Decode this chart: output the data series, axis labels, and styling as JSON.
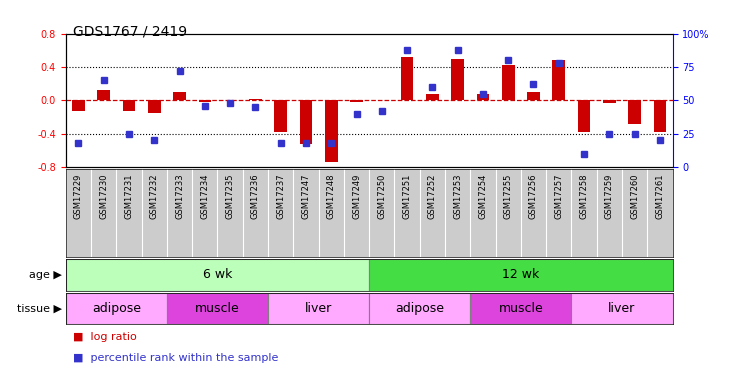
{
  "title": "GDS1767 / 2419",
  "samples": [
    "GSM17229",
    "GSM17230",
    "GSM17231",
    "GSM17232",
    "GSM17233",
    "GSM17234",
    "GSM17235",
    "GSM17236",
    "GSM17237",
    "GSM17247",
    "GSM17248",
    "GSM17249",
    "GSM17250",
    "GSM17251",
    "GSM17252",
    "GSM17253",
    "GSM17254",
    "GSM17255",
    "GSM17256",
    "GSM17257",
    "GSM17258",
    "GSM17259",
    "GSM17260",
    "GSM17261"
  ],
  "log_ratio": [
    -0.13,
    0.12,
    -0.13,
    -0.15,
    0.1,
    -0.02,
    0.0,
    0.01,
    -0.38,
    -0.52,
    -0.74,
    -0.02,
    0.0,
    0.52,
    0.08,
    0.5,
    0.08,
    0.43,
    0.1,
    0.48,
    -0.38,
    -0.03,
    -0.28,
    -0.38
  ],
  "percentile_rank": [
    18,
    65,
    25,
    20,
    72,
    46,
    48,
    45,
    18,
    18,
    18,
    40,
    42,
    88,
    60,
    88,
    55,
    80,
    62,
    78,
    10,
    25,
    25,
    20
  ],
  "ylim_left": [
    -0.8,
    0.8
  ],
  "ylim_right": [
    0,
    100
  ],
  "yticks_left": [
    -0.8,
    -0.4,
    0.0,
    0.4,
    0.8
  ],
  "yticks_right": [
    0,
    25,
    50,
    75,
    100
  ],
  "bar_color": "#cc0000",
  "dot_color": "#3333cc",
  "zero_line_color": "#cc0000",
  "age_groups": [
    {
      "label": "6 wk",
      "start": 0,
      "end": 12,
      "color": "#bbffbb"
    },
    {
      "label": "12 wk",
      "start": 12,
      "end": 24,
      "color": "#44dd44"
    }
  ],
  "tissue_groups": [
    {
      "label": "adipose",
      "start": 0,
      "end": 4,
      "color": "#ffaaff"
    },
    {
      "label": "muscle",
      "start": 4,
      "end": 8,
      "color": "#dd44dd"
    },
    {
      "label": "liver",
      "start": 8,
      "end": 12,
      "color": "#ffaaff"
    },
    {
      "label": "adipose",
      "start": 12,
      "end": 16,
      "color": "#ffaaff"
    },
    {
      "label": "muscle",
      "start": 16,
      "end": 20,
      "color": "#dd44dd"
    },
    {
      "label": "liver",
      "start": 20,
      "end": 24,
      "color": "#ffaaff"
    }
  ],
  "legend_items": [
    {
      "label": "log ratio",
      "color": "#cc0000"
    },
    {
      "label": "percentile rank within the sample",
      "color": "#3333cc"
    }
  ],
  "age_label": "age",
  "tissue_label": "tissue",
  "xlabel_bg": "#cccccc",
  "title_fontsize": 10,
  "label_fontsize": 8,
  "tick_fontsize": 6
}
